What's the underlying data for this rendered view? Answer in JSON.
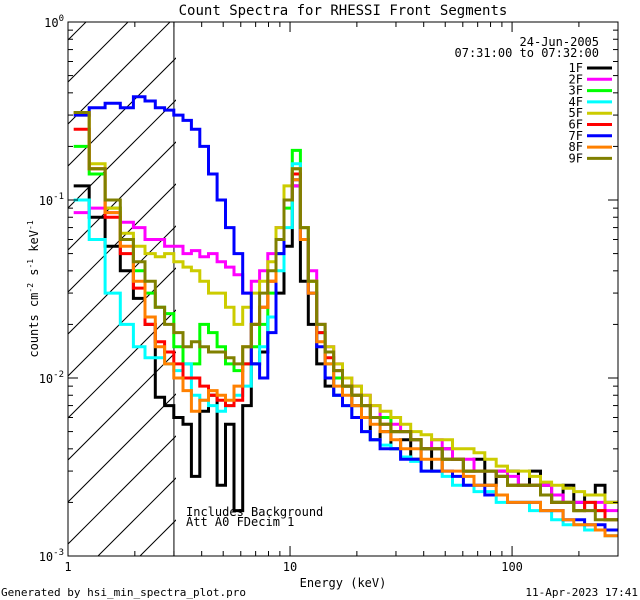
{
  "chart_data": {
    "type": "line",
    "title": "Count Spectra for RHESSI Front Segments",
    "xlabel": "Energy (keV)",
    "ylabel_main": "counts cm",
    "ylabel_sup1": "-2",
    "ylabel_mid": " s",
    "ylabel_sup2": "-1",
    "ylabel_end": " keV",
    "ylabel_sup3": "-1",
    "xscale": "log",
    "yscale": "log",
    "xlim": [
      1,
      300
    ],
    "ylim": [
      0.001,
      1
    ],
    "x_ticks": [
      {
        "v": 1,
        "t": "1"
      },
      {
        "v": 10,
        "t": "10"
      },
      {
        "v": 100,
        "t": "100"
      }
    ],
    "y_ticks": [
      {
        "v": 1,
        "base": "10",
        "exp": "0"
      },
      {
        "v": 0.1,
        "base": "10",
        "exp": "-1"
      },
      {
        "v": 0.01,
        "base": "10",
        "exp": "-2"
      },
      {
        "v": 0.001,
        "base": "10",
        "exp": "-3"
      }
    ],
    "date": "24-Jun-2005",
    "time_range": "07:31:00 to 07:32:00",
    "shaded_below_keV": 3,
    "annotations": [
      "Includes Background",
      "Att A0 FDecim 1"
    ],
    "footer_left": "Generated by hsi_min_spectra_plot.pro",
    "footer_right": "11-Apr-2023 17:41",
    "bins": [
      1.15,
      1.35,
      1.6,
      1.85,
      2.1,
      2.35,
      2.6,
      2.85,
      3.15,
      3.45,
      3.75,
      4.1,
      4.5,
      4.9,
      5.35,
      5.85,
      6.4,
      7.0,
      7.6,
      8.3,
      9.0,
      9.8,
      10.7,
      11.6,
      12.6,
      13.8,
      15.0,
      16.5,
      18.0,
      20,
      22,
      24,
      27,
      30,
      33,
      37,
      41,
      46,
      51,
      57,
      64,
      71,
      80,
      90,
      101,
      113,
      127,
      142,
      160,
      180,
      200,
      225,
      250,
      275
    ],
    "series": [
      {
        "name": "1F",
        "color": "#000000",
        "values": [
          0.12,
          0.08,
          0.055,
          0.04,
          0.028,
          0.02,
          0.0078,
          0.007,
          0.006,
          0.0055,
          0.0028,
          0.0065,
          0.008,
          0.0025,
          0.0055,
          0.0018,
          0.007,
          0.012,
          0.014,
          0.022,
          0.03,
          0.055,
          0.12,
          0.035,
          0.02,
          0.012,
          0.009,
          0.008,
          0.009,
          0.007,
          0.006,
          0.0045,
          0.005,
          0.004,
          0.0045,
          0.0035,
          0.004,
          0.003,
          0.004,
          0.0035,
          0.003,
          0.0035,
          0.0025,
          0.003,
          0.003,
          0.0025,
          0.003,
          0.0025,
          0.002,
          0.0025,
          0.002,
          0.0022,
          0.0025,
          0.002
        ]
      },
      {
        "name": "2F",
        "color": "#ff00ff",
        "values": [
          0.085,
          0.09,
          0.085,
          0.075,
          0.07,
          0.06,
          0.06,
          0.055,
          0.055,
          0.05,
          0.052,
          0.048,
          0.05,
          0.045,
          0.042,
          0.038,
          0.03,
          0.035,
          0.04,
          0.05,
          0.07,
          0.1,
          0.12,
          0.06,
          0.04,
          0.02,
          0.015,
          0.012,
          0.01,
          0.009,
          0.008,
          0.007,
          0.006,
          0.0055,
          0.005,
          0.0045,
          0.004,
          0.0045,
          0.004,
          0.0035,
          0.0035,
          0.003,
          0.003,
          0.003,
          0.0028,
          0.0025,
          0.0025,
          0.0025,
          0.0022,
          0.002,
          0.002,
          0.0018,
          0.002,
          0.0018
        ]
      },
      {
        "name": "3F",
        "color": "#00ff00",
        "values": [
          0.2,
          0.14,
          0.09,
          0.06,
          0.04,
          0.03,
          0.025,
          0.023,
          0.015,
          0.012,
          0.012,
          0.02,
          0.018,
          0.015,
          0.012,
          0.011,
          0.012,
          0.015,
          0.02,
          0.03,
          0.05,
          0.09,
          0.19,
          0.07,
          0.035,
          0.018,
          0.012,
          0.01,
          0.009,
          0.008,
          0.007,
          0.006,
          0.006,
          0.005,
          0.005,
          0.0045,
          0.004,
          0.004,
          0.0035,
          0.0035,
          0.003,
          0.003,
          0.003,
          0.0028,
          0.0025,
          0.0025,
          0.0025,
          0.0022,
          0.002,
          0.002,
          0.0018,
          0.002,
          0.0018,
          0.0016
        ]
      },
      {
        "name": "4F",
        "color": "#00ffff",
        "values": [
          0.1,
          0.06,
          0.03,
          0.02,
          0.015,
          0.013,
          0.013,
          0.012,
          0.011,
          0.012,
          0.008,
          0.0075,
          0.007,
          0.0065,
          0.007,
          0.008,
          0.009,
          0.012,
          0.015,
          0.022,
          0.04,
          0.07,
          0.16,
          0.06,
          0.03,
          0.018,
          0.01,
          0.008,
          0.007,
          0.006,
          0.005,
          0.0045,
          0.0042,
          0.004,
          0.0036,
          0.0034,
          0.003,
          0.003,
          0.0028,
          0.0025,
          0.0025,
          0.0023,
          0.0023,
          0.002,
          0.002,
          0.002,
          0.0018,
          0.0018,
          0.0016,
          0.0015,
          0.0015,
          0.0014,
          0.0014,
          0.0013
        ]
      },
      {
        "name": "5F",
        "color": "#cccc00",
        "values": [
          0.3,
          0.16,
          0.09,
          0.065,
          0.055,
          0.05,
          0.048,
          0.05,
          0.045,
          0.042,
          0.04,
          0.035,
          0.03,
          0.03,
          0.025,
          0.02,
          0.025,
          0.03,
          0.035,
          0.045,
          0.07,
          0.12,
          0.15,
          0.07,
          0.035,
          0.02,
          0.015,
          0.012,
          0.01,
          0.009,
          0.008,
          0.007,
          0.0065,
          0.006,
          0.0055,
          0.005,
          0.0048,
          0.0045,
          0.0045,
          0.004,
          0.004,
          0.0038,
          0.0035,
          0.0032,
          0.003,
          0.003,
          0.0028,
          0.0026,
          0.0025,
          0.0024,
          0.0023,
          0.0022,
          0.0022,
          0.002
        ]
      },
      {
        "name": "6F",
        "color": "#ff0000",
        "values": [
          0.25,
          0.15,
          0.08,
          0.05,
          0.032,
          0.02,
          0.016,
          0.014,
          0.012,
          0.01,
          0.01,
          0.009,
          0.008,
          0.0075,
          0.007,
          0.0075,
          0.012,
          0.02,
          0.025,
          0.035,
          0.06,
          0.1,
          0.14,
          0.06,
          0.03,
          0.018,
          0.013,
          0.011,
          0.009,
          0.008,
          0.007,
          0.006,
          0.0055,
          0.005,
          0.005,
          0.0045,
          0.004,
          0.004,
          0.0035,
          0.0035,
          0.003,
          0.003,
          0.003,
          0.0028,
          0.0025,
          0.0025,
          0.0025,
          0.0022,
          0.002,
          0.002,
          0.0018,
          0.002,
          0.0018,
          0.0016
        ]
      },
      {
        "name": "7F",
        "color": "#0000ff",
        "values": [
          0.3,
          0.33,
          0.35,
          0.33,
          0.38,
          0.36,
          0.33,
          0.32,
          0.3,
          0.28,
          0.25,
          0.2,
          0.14,
          0.1,
          0.07,
          0.05,
          0.03,
          0.012,
          0.01,
          0.018,
          0.05,
          0.1,
          0.13,
          0.06,
          0.03,
          0.015,
          0.01,
          0.008,
          0.007,
          0.006,
          0.005,
          0.0045,
          0.004,
          0.004,
          0.0035,
          0.0035,
          0.003,
          0.003,
          0.003,
          0.0028,
          0.0025,
          0.0025,
          0.0022,
          0.0022,
          0.002,
          0.002,
          0.002,
          0.0018,
          0.0018,
          0.0016,
          0.0016,
          0.0015,
          0.0015,
          0.0014
        ]
      },
      {
        "name": "8F",
        "color": "#ff8000",
        "values": [
          0.31,
          0.15,
          0.085,
          0.055,
          0.035,
          0.022,
          0.015,
          0.012,
          0.01,
          0.0085,
          0.0065,
          0.0075,
          0.0085,
          0.008,
          0.0075,
          0.009,
          0.015,
          0.02,
          0.025,
          0.035,
          0.06,
          0.1,
          0.13,
          0.06,
          0.03,
          0.016,
          0.012,
          0.009,
          0.008,
          0.007,
          0.006,
          0.0055,
          0.005,
          0.0045,
          0.004,
          0.004,
          0.0035,
          0.0035,
          0.003,
          0.003,
          0.0028,
          0.0025,
          0.0025,
          0.0022,
          0.002,
          0.002,
          0.002,
          0.0018,
          0.0018,
          0.0016,
          0.0015,
          0.0015,
          0.0014,
          0.0013
        ]
      },
      {
        "name": "9F",
        "color": "#808000",
        "values": [
          0.31,
          0.15,
          0.1,
          0.06,
          0.045,
          0.035,
          0.025,
          0.02,
          0.018,
          0.015,
          0.016,
          0.015,
          0.014,
          0.014,
          0.013,
          0.012,
          0.015,
          0.02,
          0.03,
          0.04,
          0.06,
          0.1,
          0.15,
          0.07,
          0.035,
          0.02,
          0.014,
          0.011,
          0.009,
          0.008,
          0.007,
          0.006,
          0.0055,
          0.005,
          0.005,
          0.0045,
          0.004,
          0.004,
          0.0035,
          0.0035,
          0.003,
          0.003,
          0.003,
          0.0028,
          0.0025,
          0.0025,
          0.0025,
          0.0022,
          0.002,
          0.002,
          0.0018,
          0.0018,
          0.0016,
          0.0016
        ]
      }
    ]
  }
}
